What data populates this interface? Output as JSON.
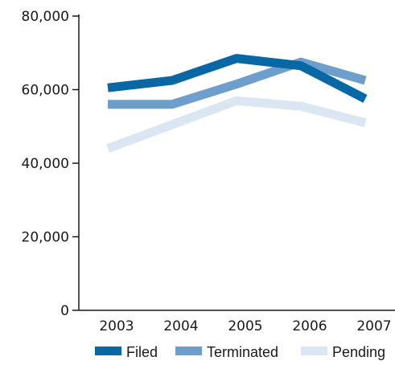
{
  "chart_data": {
    "type": "line",
    "x": [
      "2003",
      "2004",
      "2005",
      "2006",
      "2007"
    ],
    "y_ticks": [
      "0",
      "20,000",
      "40,000",
      "60,000",
      "80,000"
    ],
    "ylim": [
      0,
      80000
    ],
    "grid": false,
    "legend_placement": "bottom",
    "series": [
      {
        "name": "Filed",
        "color": "#0868a6",
        "values": [
          60500,
          62500,
          68500,
          66500,
          57500
        ]
      },
      {
        "name": "Terminated",
        "color": "#6e9fcc",
        "values": [
          56000,
          56000,
          61500,
          67500,
          62500
        ]
      },
      {
        "name": "Pending",
        "color": "#dbe6f3",
        "values": [
          44000,
          50500,
          57000,
          55500,
          51000
        ]
      }
    ]
  }
}
